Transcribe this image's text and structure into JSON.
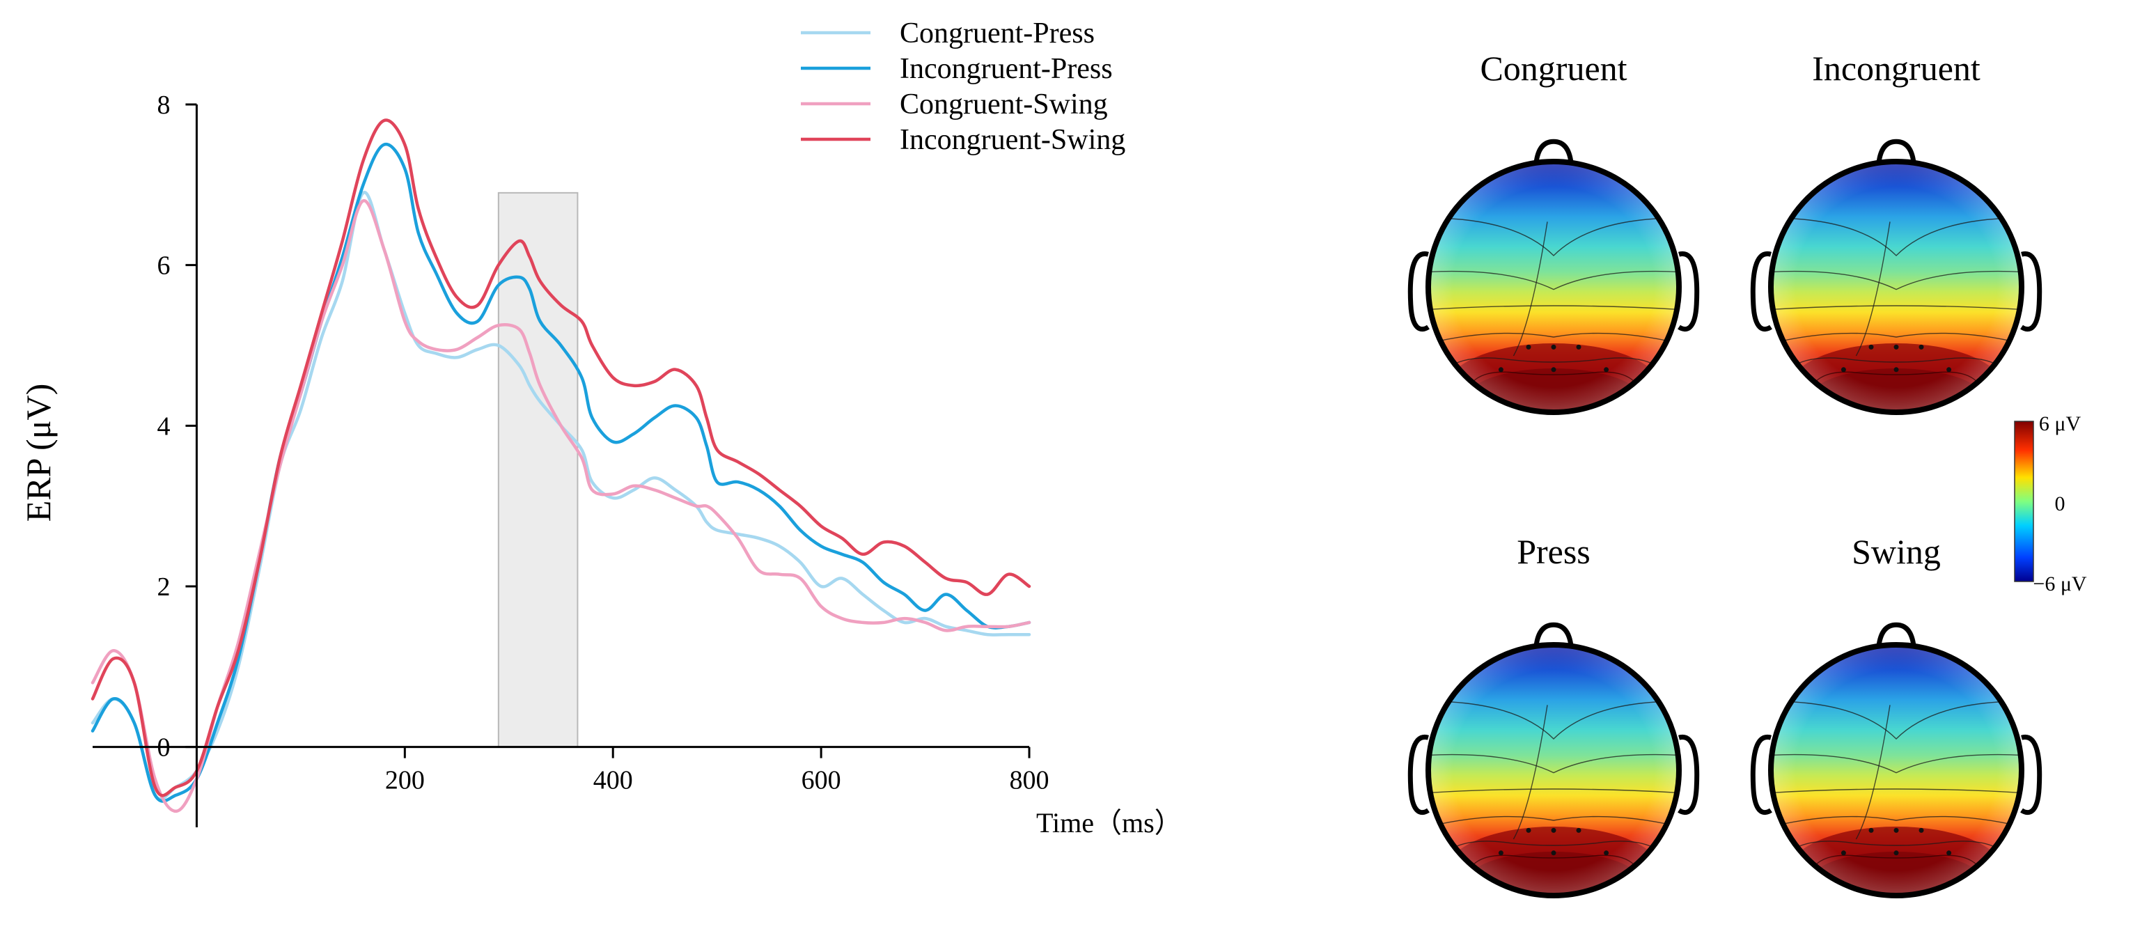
{
  "chart_data": [
    {
      "type": "line",
      "ylabel": "ERP (μV)",
      "xlabel": "Time（ms）",
      "xlim": [
        -100,
        800
      ],
      "ylim": [
        -1,
        8
      ],
      "x_ticks": [
        200,
        400,
        600,
        800
      ],
      "y_ticks": [
        0,
        2,
        4,
        6,
        8
      ],
      "x_tick_labels": [
        "200",
        "400",
        "600",
        "800"
      ],
      "y_tick_labels": [
        "0",
        "2",
        "4",
        "6",
        "8"
      ],
      "highlight_window": [
        290,
        366
      ],
      "highlight_top": 6.9,
      "legend_position": "top-right",
      "x": [
        -100,
        -80,
        -60,
        -40,
        -20,
        0,
        20,
        40,
        60,
        80,
        100,
        120,
        140,
        160,
        180,
        200,
        213,
        230,
        250,
        270,
        290,
        310,
        320,
        330,
        350,
        370,
        380,
        400,
        420,
        440,
        460,
        480,
        490,
        500,
        520,
        540,
        560,
        580,
        600,
        620,
        640,
        660,
        680,
        700,
        720,
        740,
        760,
        780,
        800
      ],
      "series": [
        {
          "name": "Congruent-Press",
          "color": "#a6d8f0",
          "values": [
            0.3,
            0.6,
            0.3,
            -0.6,
            -0.5,
            -0.3,
            0.2,
            1.0,
            2.2,
            3.5,
            4.2,
            5.1,
            5.8,
            6.9,
            6.2,
            5.4,
            5.0,
            4.9,
            4.85,
            4.95,
            5.0,
            4.75,
            4.5,
            4.3,
            4.0,
            3.7,
            3.3,
            3.1,
            3.2,
            3.35,
            3.2,
            3.0,
            2.8,
            2.7,
            2.65,
            2.6,
            2.5,
            2.3,
            2.0,
            2.1,
            1.9,
            1.7,
            1.55,
            1.6,
            1.5,
            1.45,
            1.4,
            1.4,
            1.4
          ]
        },
        {
          "name": "Incongruent-Press",
          "color": "#1aa0dc",
          "values": [
            0.2,
            0.6,
            0.3,
            -0.6,
            -0.6,
            -0.4,
            0.3,
            1.1,
            2.3,
            3.6,
            4.4,
            5.3,
            6.1,
            7.0,
            7.5,
            7.2,
            6.4,
            5.9,
            5.4,
            5.3,
            5.75,
            5.85,
            5.7,
            5.3,
            5.0,
            4.6,
            4.1,
            3.8,
            3.9,
            4.1,
            4.25,
            4.1,
            3.75,
            3.3,
            3.3,
            3.2,
            3.0,
            2.7,
            2.5,
            2.4,
            2.3,
            2.05,
            1.9,
            1.7,
            1.9,
            1.7,
            1.5,
            1.5,
            1.55
          ]
        },
        {
          "name": "Congruent-Swing",
          "color": "#f0a0c0",
          "values": [
            0.8,
            1.2,
            0.8,
            -0.4,
            -0.8,
            -0.4,
            0.5,
            1.3,
            2.4,
            3.5,
            4.4,
            5.3,
            6.0,
            6.8,
            6.2,
            5.3,
            5.05,
            4.95,
            4.95,
            5.1,
            5.25,
            5.2,
            4.9,
            4.5,
            4.0,
            3.6,
            3.2,
            3.15,
            3.25,
            3.2,
            3.1,
            3.0,
            3.0,
            2.9,
            2.6,
            2.2,
            2.15,
            2.1,
            1.75,
            1.6,
            1.55,
            1.55,
            1.6,
            1.55,
            1.45,
            1.5,
            1.5,
            1.5,
            1.55
          ]
        },
        {
          "name": "Incongruent-Swing",
          "color": "#e0445a",
          "values": [
            0.6,
            1.1,
            0.8,
            -0.5,
            -0.5,
            -0.3,
            0.5,
            1.2,
            2.3,
            3.6,
            4.5,
            5.4,
            6.3,
            7.3,
            7.8,
            7.5,
            6.7,
            6.1,
            5.6,
            5.5,
            6.0,
            6.3,
            6.1,
            5.8,
            5.5,
            5.3,
            5.0,
            4.6,
            4.5,
            4.55,
            4.7,
            4.5,
            4.1,
            3.7,
            3.55,
            3.4,
            3.2,
            3.0,
            2.75,
            2.6,
            2.4,
            2.55,
            2.5,
            2.3,
            2.1,
            2.05,
            1.9,
            2.15,
            2.0
          ]
        }
      ]
    },
    {
      "type": "heatmap",
      "subtype": "scalp-topography",
      "panels": [
        {
          "title": "Congruent"
        },
        {
          "title": "Incongruent"
        },
        {
          "title": "Press"
        },
        {
          "title": "Swing"
        }
      ],
      "colorbar": {
        "min_label": "−6 μV",
        "mid_label": "0",
        "max_label": "6 μV",
        "min": -6,
        "max": 6
      }
    }
  ],
  "colors": {
    "accent": "#000000",
    "highlight_fill": "#ececec",
    "highlight_stroke": "#b8b8b8"
  }
}
